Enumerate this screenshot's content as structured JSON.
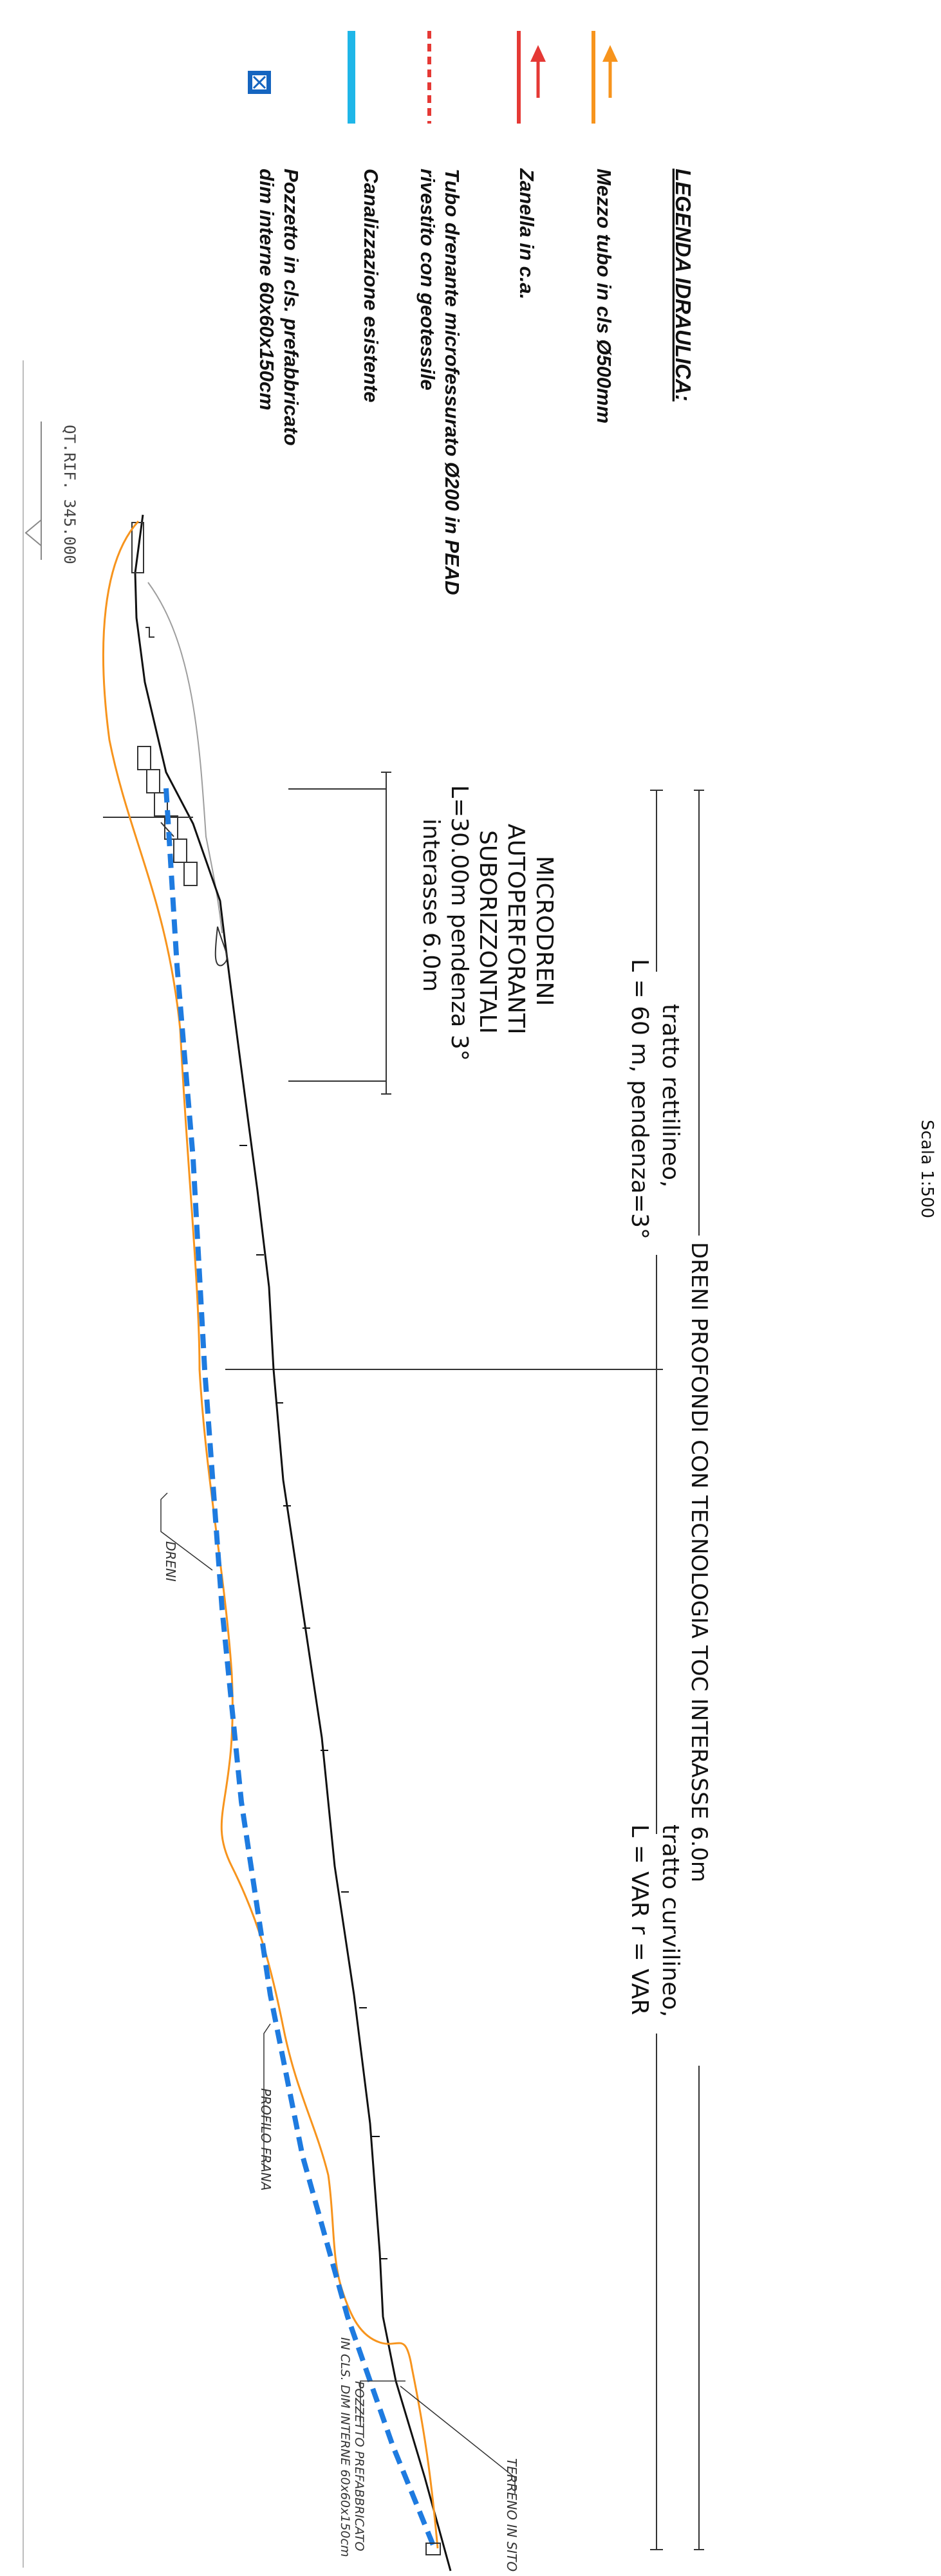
{
  "scale": "Scala  1:500",
  "legend": {
    "title": "LEGENDA IDRAULICA:",
    "items": [
      {
        "label": "Mezzo tubo in cls Ø500mm",
        "symbol": "orange-arrow-line",
        "color": "#f7941d"
      },
      {
        "label": "Zanella in c.a.",
        "symbol": "red-arrow-line",
        "color": "#e53935"
      },
      {
        "label": "Tubo drenante microfessurato Ø200 in PEAD",
        "label2": "rivestito con geotessile",
        "symbol": "red-dashed-line",
        "color": "#e53935"
      },
      {
        "label": "Canalizzazione esistente",
        "symbol": "cyan-line",
        "color": "#1fb6e8"
      },
      {
        "label": "Pozzetto in cls. prefabbricato",
        "label2": "dim interne 60x60x150cm",
        "symbol": "manhole-icon",
        "color": "#1565c0"
      }
    ]
  },
  "headings": {
    "deep_drains": "DRENI PROFONDI CON TECNOLOGIA TOC INTERASSE 6.0m",
    "straight_1": "tratto rettilineo,",
    "straight_2": "L = 60 m, pendenza=3°",
    "curved_1": "tratto curvilineo,",
    "curved_2": "L = VAR   r = VAR",
    "micro_1": "MICRODRENI",
    "micro_2": "AUTOPERFORANTI",
    "micro_3": "SUBORIZZONTALI",
    "micro_4": "L=30.00m pendenza 3°",
    "micro_5": "interasse 6.0m"
  },
  "annotations": {
    "reference_level": "QT.RIF. 345.000",
    "dreni": "DRENI",
    "profilo_frana": "PROFILO FRANA",
    "pozzetto_1": "POZZETTO PREFABBRICATO",
    "pozzetto_2": "IN CLS. DIM INTERNE 60x60x150cm",
    "terreno": "TERRENO IN SITO"
  },
  "colors": {
    "terrain": "#111111",
    "landslide": "#f7941d",
    "drain": "#1e7be0",
    "existing": "#9e9e9e"
  }
}
